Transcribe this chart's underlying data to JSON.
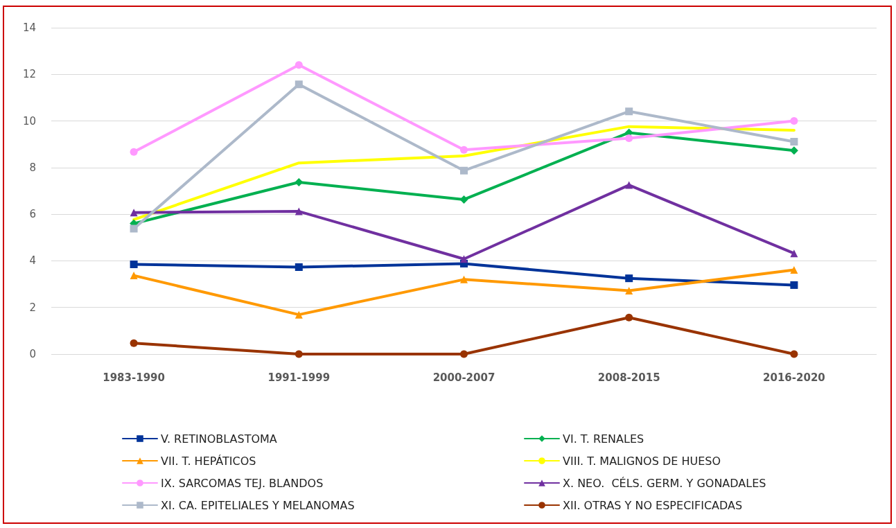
{
  "chart_data": {
    "type": "line",
    "categories": [
      "1983-1990",
      "1991-1999",
      "2000-2007",
      "2008-2015",
      "2016-2020"
    ],
    "ylim": [
      0,
      14
    ],
    "yticks": [
      0,
      2,
      4,
      6,
      8,
      10,
      12,
      14
    ],
    "grid": "y",
    "legend": "bottom",
    "line_style": "solid",
    "series": [
      {
        "name": "V. RETINOBLASTOMA",
        "color": "#003399",
        "marker": "square",
        "values": [
          3.85,
          3.73,
          3.88,
          3.25,
          2.96
        ]
      },
      {
        "name": "VI. T. RENALES",
        "color": "#00b050",
        "marker": "diamond",
        "values": [
          5.6,
          7.37,
          6.63,
          9.5,
          8.73
        ]
      },
      {
        "name": "VII. T. HEPÁTICOS",
        "color": "#ff9900",
        "marker": "triangle",
        "values": [
          3.37,
          1.69,
          3.2,
          2.72,
          3.61
        ]
      },
      {
        "name": "VIII. T. MALIGNOS DE HUESO",
        "color": "#ffff00",
        "marker": "none",
        "values": [
          5.77,
          8.2,
          8.5,
          9.76,
          9.6
        ]
      },
      {
        "name": "IX. SARCOMAS TEJ. BLANDOS",
        "color": "#ff99ff",
        "marker": "circle",
        "values": [
          8.67,
          12.4,
          8.76,
          9.26,
          10.0
        ]
      },
      {
        "name": "X. NEO.  CÉLS. GERM. Y GONADALES",
        "color": "#7030a0",
        "marker": "triangle",
        "values": [
          6.07,
          6.12,
          4.08,
          7.25,
          4.32
        ]
      },
      {
        "name": "XI. CA. EPITELIALES Y MELANOMAS",
        "color": "#adb9ca",
        "marker": "square",
        "values": [
          5.38,
          11.57,
          7.87,
          10.41,
          9.11
        ]
      },
      {
        "name": "XII. OTRAS Y NO ESPECIFICADAS",
        "color": "#993300",
        "marker": "circle",
        "values": [
          0.47,
          0,
          0,
          1.57,
          0
        ]
      }
    ]
  }
}
